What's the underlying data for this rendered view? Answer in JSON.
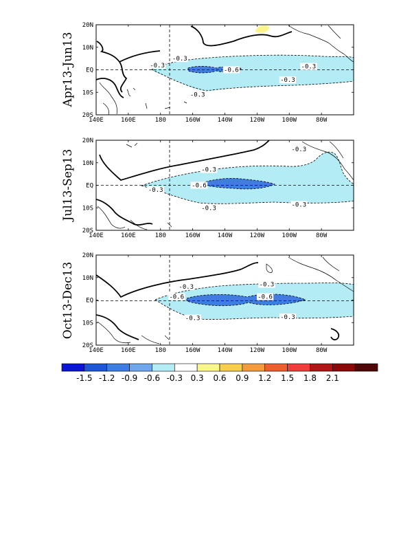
{
  "figure": {
    "panels": [
      {
        "period": "Apr13-Jun13",
        "contour_labels": [
          {
            "lon": 192,
            "lat": 5,
            "text": "-0.3"
          },
          {
            "lon": 272,
            "lat": 1.5,
            "text": "-0.3"
          },
          {
            "lon": 178,
            "lat": 2,
            "text": "-0.3"
          },
          {
            "lon": 224,
            "lat": 0,
            "text": "-0.6"
          },
          {
            "lon": 259,
            "lat": -4.5,
            "text": "-0.3"
          },
          {
            "lon": 203,
            "lat": -11,
            "text": "-0.3"
          }
        ]
      },
      {
        "period": "Jul13-Sep13",
        "contour_labels": [
          {
            "lon": 266,
            "lat": 16,
            "text": "-0.3"
          },
          {
            "lon": 210,
            "lat": 7,
            "text": "-0.3"
          },
          {
            "lon": 177,
            "lat": -2,
            "text": "-0.3"
          },
          {
            "lon": 204,
            "lat": 0,
            "text": "-0.6"
          },
          {
            "lon": 210,
            "lat": -10,
            "text": "-0.3"
          },
          {
            "lon": 266,
            "lat": -8.5,
            "text": "-0.3"
          }
        ]
      },
      {
        "period": "Oct13-Dec13",
        "contour_labels": [
          {
            "lon": 196,
            "lat": 6,
            "text": "-0.3"
          },
          {
            "lon": 246,
            "lat": 7,
            "text": "-0.3"
          },
          {
            "lon": 190,
            "lat": 1.5,
            "text": "-0.6"
          },
          {
            "lon": 245,
            "lat": 1.5,
            "text": "-0.6"
          },
          {
            "lon": 200,
            "lat": -8,
            "text": "-0.3"
          },
          {
            "lon": 259,
            "lat": -7.5,
            "text": "-0.3"
          }
        ]
      }
    ],
    "lon_ticks": [
      "140E",
      "160E",
      "180",
      "160W",
      "140W",
      "120W",
      "100W",
      "80W"
    ],
    "lat_ticks": [
      "20N",
      "10N",
      "EQ",
      "10S",
      "20S"
    ],
    "colorbar": {
      "colors": [
        "#0a15d8",
        "#1f56d6",
        "#3d7ee0",
        "#6fa6ec",
        "#b4ecf6",
        "#ffffff",
        "#fbf58e",
        "#f8cf4c",
        "#f29a3e",
        "#ee5f30",
        "#f23c3c",
        "#b01616",
        "#8a0a0a",
        "#4f0707"
      ],
      "labels": [
        "-1.5",
        "-1.2",
        "-0.9",
        "-0.6",
        "-0.3",
        "0.3",
        "0.6",
        "0.9",
        "1.2",
        "1.5",
        "1.8",
        "2.1"
      ]
    }
  }
}
